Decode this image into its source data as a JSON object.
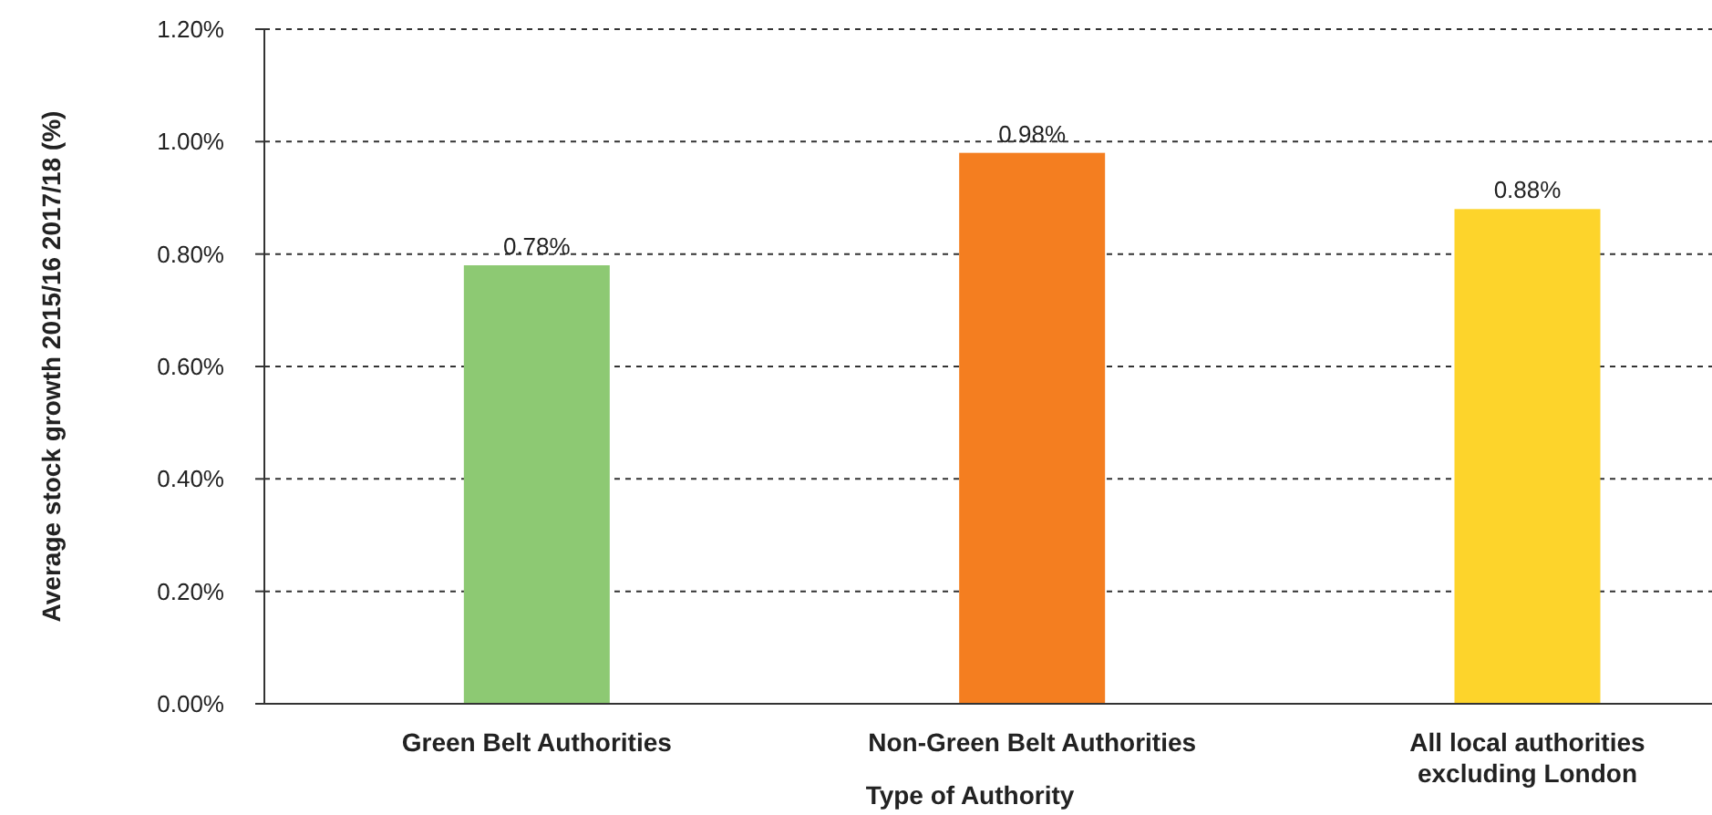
{
  "chart_data": {
    "type": "bar",
    "xlabel": "Type of Authority",
    "ylabel": "Average stock growth 2015/16 2017/18 (%)",
    "categories": [
      "Green Belt Authorities",
      "Non-Green Belt Authorities",
      "All local authorities excluding London"
    ],
    "values": [
      0.78,
      0.98,
      0.88
    ],
    "colors": [
      "#8dc973",
      "#f47e20",
      "#fdd42b"
    ],
    "value_labels": [
      "0.78%",
      "0.98%",
      "0.88%"
    ],
    "ylim": [
      0,
      1.2
    ],
    "yticks": [
      {
        "value": 0,
        "label": "0.00%"
      },
      {
        "value": 0.2,
        "label": "0.20%"
      },
      {
        "value": 0.4,
        "label": "0.40%"
      },
      {
        "value": 0.6,
        "label": "0.60%"
      },
      {
        "value": 0.8,
        "label": "0.80%"
      },
      {
        "value": 1.0,
        "label": "1.00%"
      },
      {
        "value": 1.2,
        "label": "1.20%"
      }
    ],
    "grid": "y"
  }
}
